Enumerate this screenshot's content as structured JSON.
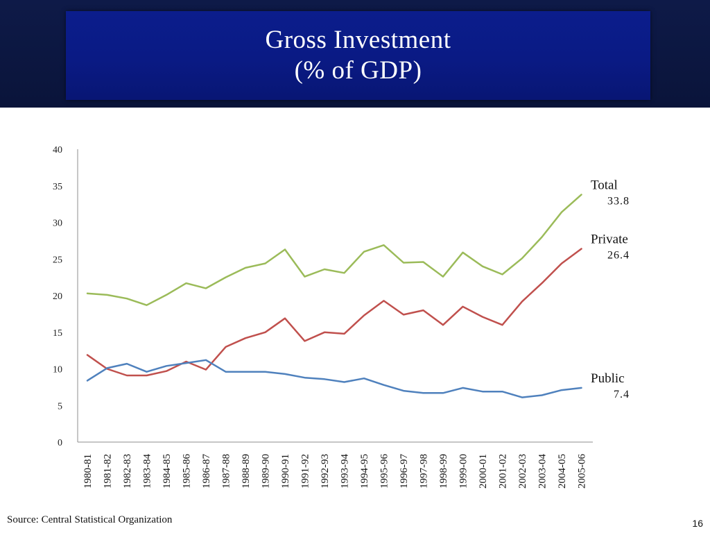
{
  "slide": {
    "title_line1": "Gross Investment",
    "title_line2": "(% of GDP)",
    "source": "Source: Central Statistical Organization",
    "page_number": "16"
  },
  "colors": {
    "total": "#9bbb59",
    "private": "#c0504d",
    "public": "#4f81bd",
    "axis": "#8c8c8c"
  },
  "chart_data": {
    "type": "line",
    "title": "Gross Investment (% of GDP)",
    "xlabel": "",
    "ylabel": "",
    "ylim": [
      0,
      40
    ],
    "yticks": [
      0,
      5,
      10,
      15,
      20,
      25,
      30,
      35,
      40
    ],
    "grid": false,
    "categories": [
      "1980-81",
      "1981-82",
      "1982-83",
      "1983-84",
      "1984-85",
      "1985-86",
      "1986-87",
      "1987-88",
      "1988-89",
      "1989-90",
      "1990-91",
      "1991-92",
      "1992-93",
      "1993-94",
      "1994-95",
      "1995-96",
      "1996-97",
      "1997-98",
      "1998-99",
      "1999-00",
      "2000-01",
      "2001-02",
      "2002-03",
      "2003-04",
      "2004-05",
      "2005-06"
    ],
    "series": [
      {
        "key": "total",
        "name": "Total",
        "end_label": "33.8",
        "values": [
          20.3,
          20.1,
          19.6,
          18.7,
          20.1,
          21.7,
          21.0,
          22.5,
          23.8,
          24.4,
          26.3,
          22.6,
          23.6,
          23.1,
          26.0,
          26.9,
          24.5,
          24.6,
          22.6,
          25.9,
          24.0,
          22.9,
          25.1,
          28.0,
          31.4,
          33.8
        ]
      },
      {
        "key": "private",
        "name": "Private",
        "end_label": "26.4",
        "values": [
          11.9,
          10.0,
          9.1,
          9.1,
          9.7,
          11.0,
          9.9,
          13.0,
          14.2,
          15.0,
          16.9,
          13.8,
          15.0,
          14.8,
          17.3,
          19.3,
          17.4,
          18.0,
          16.0,
          18.5,
          17.1,
          16.0,
          19.2,
          21.7,
          24.4,
          26.4
        ]
      },
      {
        "key": "public",
        "name": "Public",
        "end_label": "7.4",
        "values": [
          8.4,
          10.1,
          10.7,
          9.6,
          10.4,
          10.8,
          11.2,
          9.6,
          9.6,
          9.6,
          9.3,
          8.8,
          8.6,
          8.2,
          8.7,
          7.8,
          7.0,
          6.7,
          6.7,
          7.4,
          6.9,
          6.9,
          6.1,
          6.4,
          7.1,
          7.4
        ]
      }
    ]
  }
}
